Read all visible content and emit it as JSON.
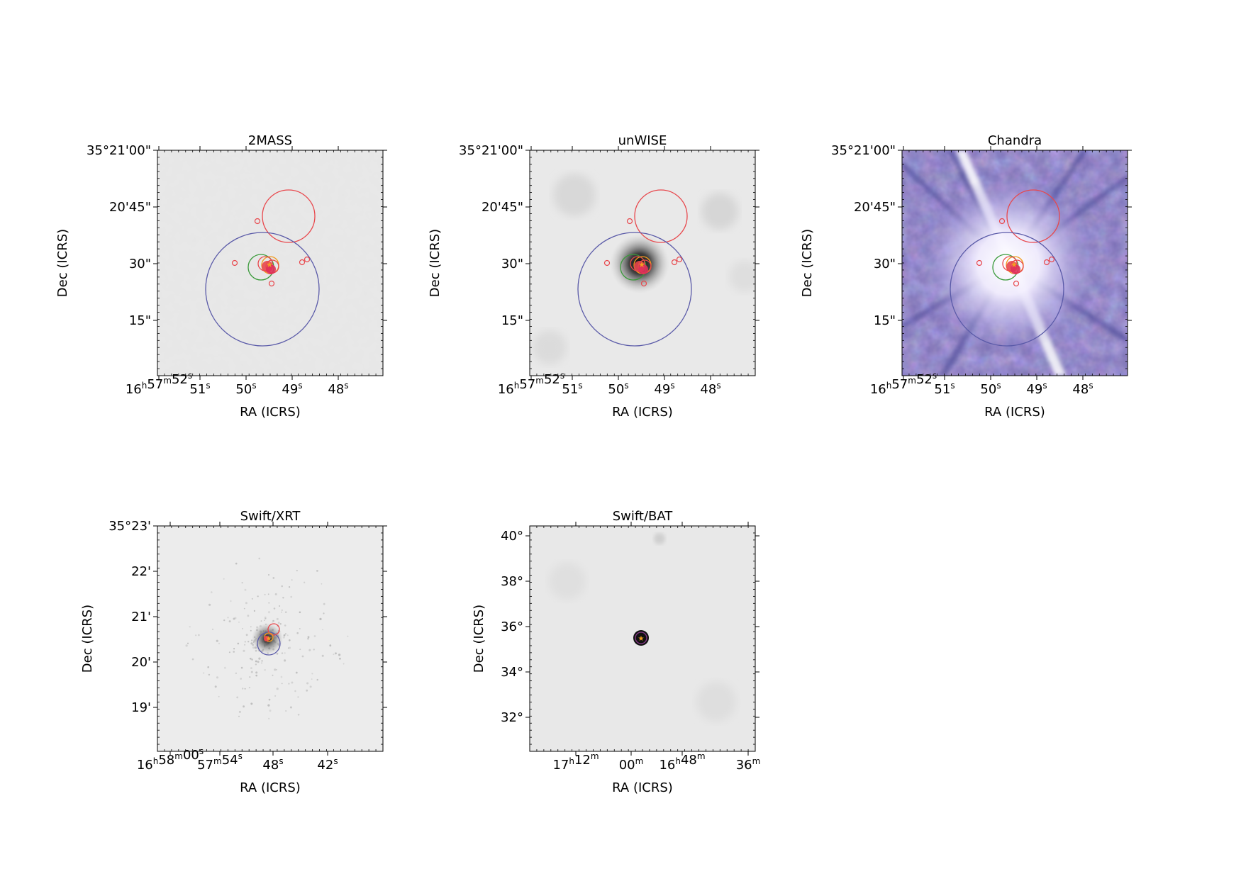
{
  "panels": [
    {
      "id": "twomass",
      "title": "2MASS",
      "xlabel": "RA (ICRS)",
      "ylabel": "Dec (ICRS)",
      "xticks": [
        {
          "parts": [
            [
              "16",
              "h"
            ],
            [
              "57",
              "m"
            ],
            [
              "52",
              "s"
            ]
          ]
        },
        {
          "parts": [
            [
              "51",
              "s"
            ]
          ]
        },
        {
          "parts": [
            [
              "50",
              "s"
            ]
          ]
        },
        {
          "parts": [
            [
              "49",
              "s"
            ]
          ]
        },
        {
          "parts": [
            [
              "48",
              "s"
            ]
          ]
        }
      ],
      "yticks": [
        "35°21'00\"",
        "20'45\"",
        "30\"",
        "15\""
      ],
      "image": "grey-noise-faint"
    },
    {
      "id": "unwise",
      "title": "unWISE",
      "xlabel": "RA (ICRS)",
      "ylabel": "Dec (ICRS)",
      "xticks": [
        {
          "parts": [
            [
              "16",
              "h"
            ],
            [
              "57",
              "m"
            ],
            [
              "52",
              "s"
            ]
          ]
        },
        {
          "parts": [
            [
              "51",
              "s"
            ]
          ]
        },
        {
          "parts": [
            [
              "50",
              "s"
            ]
          ]
        },
        {
          "parts": [
            [
              "49",
              "s"
            ]
          ]
        },
        {
          "parts": [
            [
              "48",
              "s"
            ]
          ]
        }
      ],
      "yticks": [
        "35°21'00\"",
        "20'45\"",
        "30\"",
        "15\""
      ],
      "image": "grey-smooth-with-dark-source"
    },
    {
      "id": "chandra",
      "title": "Chandra",
      "xlabel": "RA (ICRS)",
      "ylabel": "Dec (ICRS)",
      "xticks": [
        {
          "parts": [
            [
              "16",
              "h"
            ],
            [
              "57",
              "m"
            ],
            [
              "52",
              "s"
            ]
          ]
        },
        {
          "parts": [
            [
              "51",
              "s"
            ]
          ]
        },
        {
          "parts": [
            [
              "50",
              "s"
            ]
          ]
        },
        {
          "parts": [
            [
              "49",
              "s"
            ]
          ]
        },
        {
          "parts": [
            [
              "48",
              "s"
            ]
          ]
        }
      ],
      "yticks": [
        "35°21'00\"",
        "20'45\"",
        "30\"",
        "15\""
      ],
      "image": "purple-rgb-with-bright-source-and-streak"
    },
    {
      "id": "xrt",
      "title": "Swift/XRT",
      "xlabel": "RA (ICRS)",
      "ylabel": "Dec (ICRS)",
      "xticks": [
        {
          "parts": [
            [
              "16",
              "h"
            ],
            [
              "58",
              "m"
            ],
            [
              "00",
              "s"
            ]
          ]
        },
        {
          "parts": [
            [
              "57",
              "m"
            ],
            [
              "54",
              "s"
            ]
          ]
        },
        {
          "parts": [
            [
              "48",
              "s"
            ]
          ]
        },
        {
          "parts": [
            [
              "42",
              "s"
            ]
          ]
        }
      ],
      "yticks": [
        "35°23'",
        "22'",
        "21'",
        "20'",
        "19'"
      ],
      "image": "light-grey-scattered-counts"
    },
    {
      "id": "bat",
      "title": "Swift/BAT",
      "xlabel": "RA (ICRS)",
      "ylabel": "Dec (ICRS)",
      "xticks": [
        {
          "parts": [
            [
              "17",
              "h"
            ],
            [
              "12",
              "m"
            ]
          ]
        },
        {
          "parts": [
            [
              "00",
              "m"
            ]
          ]
        },
        {
          "parts": [
            [
              "16",
              "h"
            ],
            [
              "48",
              "m"
            ]
          ]
        },
        {
          "parts": [
            [
              "36",
              "m"
            ]
          ]
        }
      ],
      "yticks": [
        "40°",
        "38°",
        "36°",
        "34°",
        "32°"
      ],
      "image": "grey-smooth-with-point-source"
    }
  ],
  "colors": {
    "catalog_red": "#e8474c",
    "catalog_blue": "#5a5aa8",
    "catalog_green": "#3a9a3a",
    "catalog_orange": "#f39a1c",
    "marker_star": "#f4a020"
  }
}
